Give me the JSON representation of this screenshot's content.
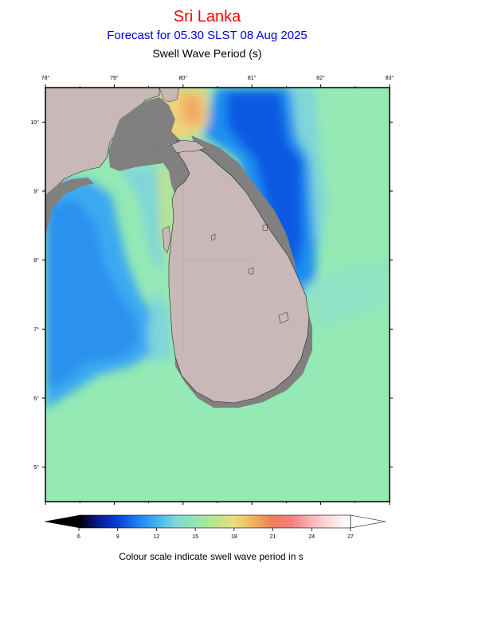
{
  "header": {
    "region": "Sri Lanka",
    "forecast": "Forecast for  05.30 SLST 08 Aug 2025",
    "variable": "Swell Wave Period (s)"
  },
  "map": {
    "lon_range": [
      78,
      83
    ],
    "lat_range": [
      4.5,
      10.5
    ],
    "lon_labels": [
      "78°",
      "79°",
      "80°",
      "81°",
      "82°",
      "83°"
    ],
    "lat_labels": [
      "10°",
      "9°",
      "8°",
      "7°",
      "6°",
      "5°"
    ],
    "land_color": "#c9b8b8",
    "coast_shade_color": "#808080"
  },
  "colorbar": {
    "tick_labels": [
      "6",
      "9",
      "12",
      "15",
      "18",
      "21",
      "24",
      "27"
    ],
    "min": 6,
    "max": 27,
    "colors": [
      "#000000",
      "#0b1a8c",
      "#0a3fd6",
      "#1e7ff0",
      "#43b2f0",
      "#7fd6d8",
      "#92e8b0",
      "#b9e58a",
      "#ebe07a",
      "#f3b060",
      "#ee7d5a",
      "#f48080",
      "#f9b6b6",
      "#fde0e0",
      "#ffffff"
    ],
    "caption": "Colour scale indicate swell wave period in s"
  }
}
